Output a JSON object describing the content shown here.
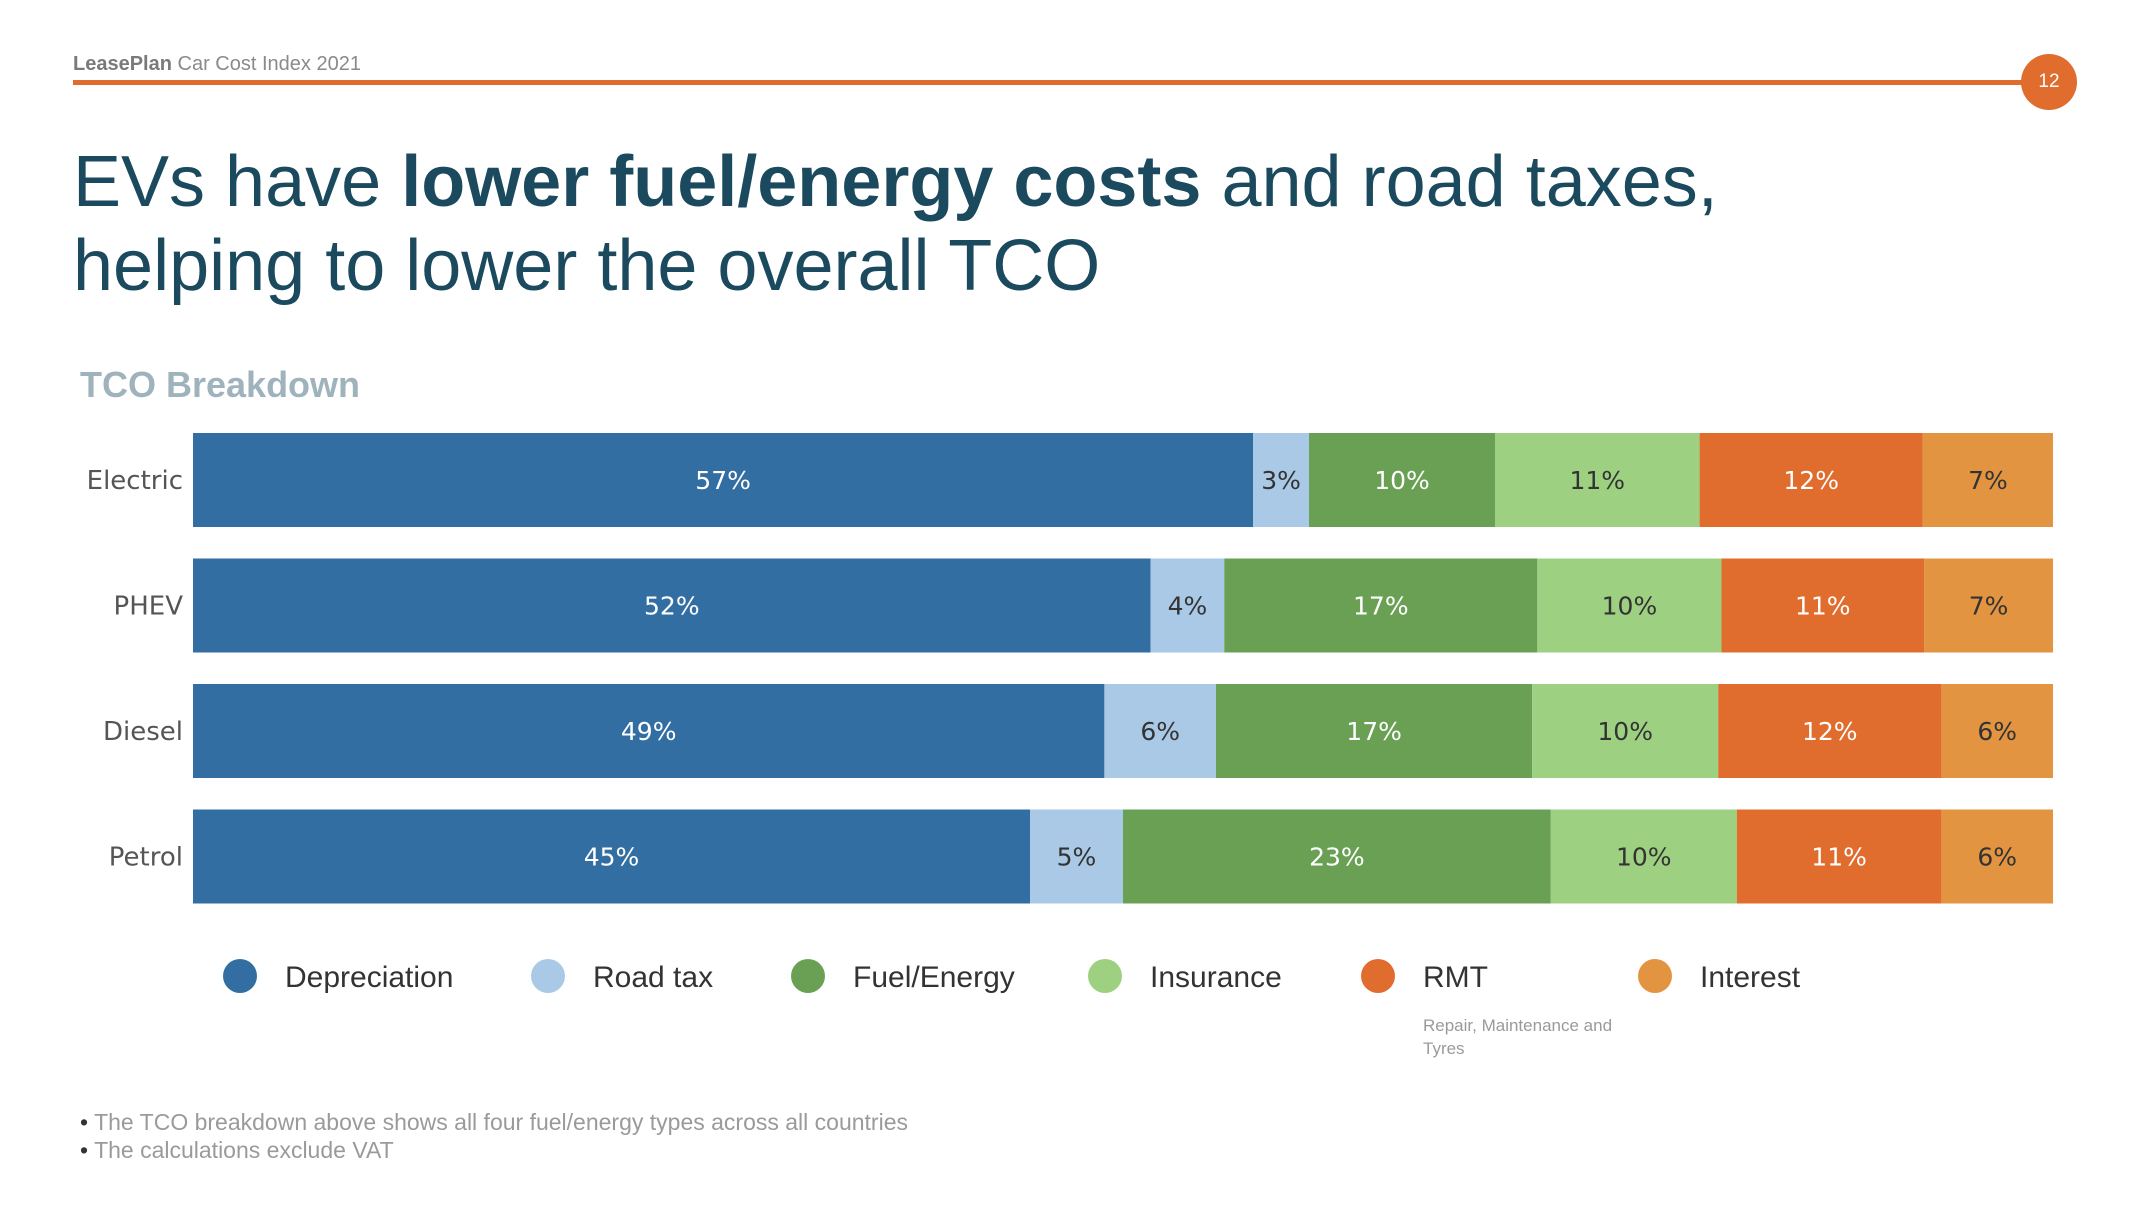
{
  "header": {
    "brand": "LeasePlan",
    "subtitle": "Car Cost Index 2021",
    "page_number": "12"
  },
  "title": {
    "part1": "EVs have ",
    "bold": "lower fuel/energy costs",
    "part2": " and road taxes,",
    "line2": "helping to lower the overall TCO"
  },
  "chart_title": "TCO Breakdown",
  "chart_data": {
    "type": "bar",
    "orientation": "horizontal",
    "stacked": true,
    "categories": [
      "Electric",
      "PHEV",
      "Diesel",
      "Petrol"
    ],
    "series": [
      {
        "name": "Depreciation",
        "color": "#336ea3",
        "label_color": "#ffffff",
        "values": [
          57,
          52,
          49,
          45
        ]
      },
      {
        "name": "Road tax",
        "color": "#a9c9e6",
        "label_color": "#333333",
        "values": [
          3,
          4,
          6,
          5
        ]
      },
      {
        "name": "Fuel/Energy",
        "color": "#6aa054",
        "label_color": "#ffffff",
        "values": [
          10,
          17,
          17,
          23
        ]
      },
      {
        "name": "Insurance",
        "color": "#9dd080",
        "label_color": "#333333",
        "values": [
          11,
          10,
          10,
          10
        ]
      },
      {
        "name": "RMT",
        "color": "#e06c2e",
        "label_color": "#ffffff",
        "values": [
          12,
          11,
          12,
          11
        ]
      },
      {
        "name": "Interest",
        "color": "#e29440",
        "label_color": "#333333",
        "values": [
          7,
          7,
          6,
          6
        ]
      }
    ],
    "value_suffix": "%",
    "legend_position": "bottom",
    "grid": false
  },
  "legend_note": {
    "series": "RMT",
    "text": "Repair, Maintenance and Tyres"
  },
  "notes": [
    "The TCO breakdown above shows all four fuel/energy types across all countries",
    "The calculations exclude VAT"
  ],
  "colors": {
    "accent": "#e06c2e",
    "title": "#1b4a5e",
    "chart_title": "#9fb3bd"
  }
}
